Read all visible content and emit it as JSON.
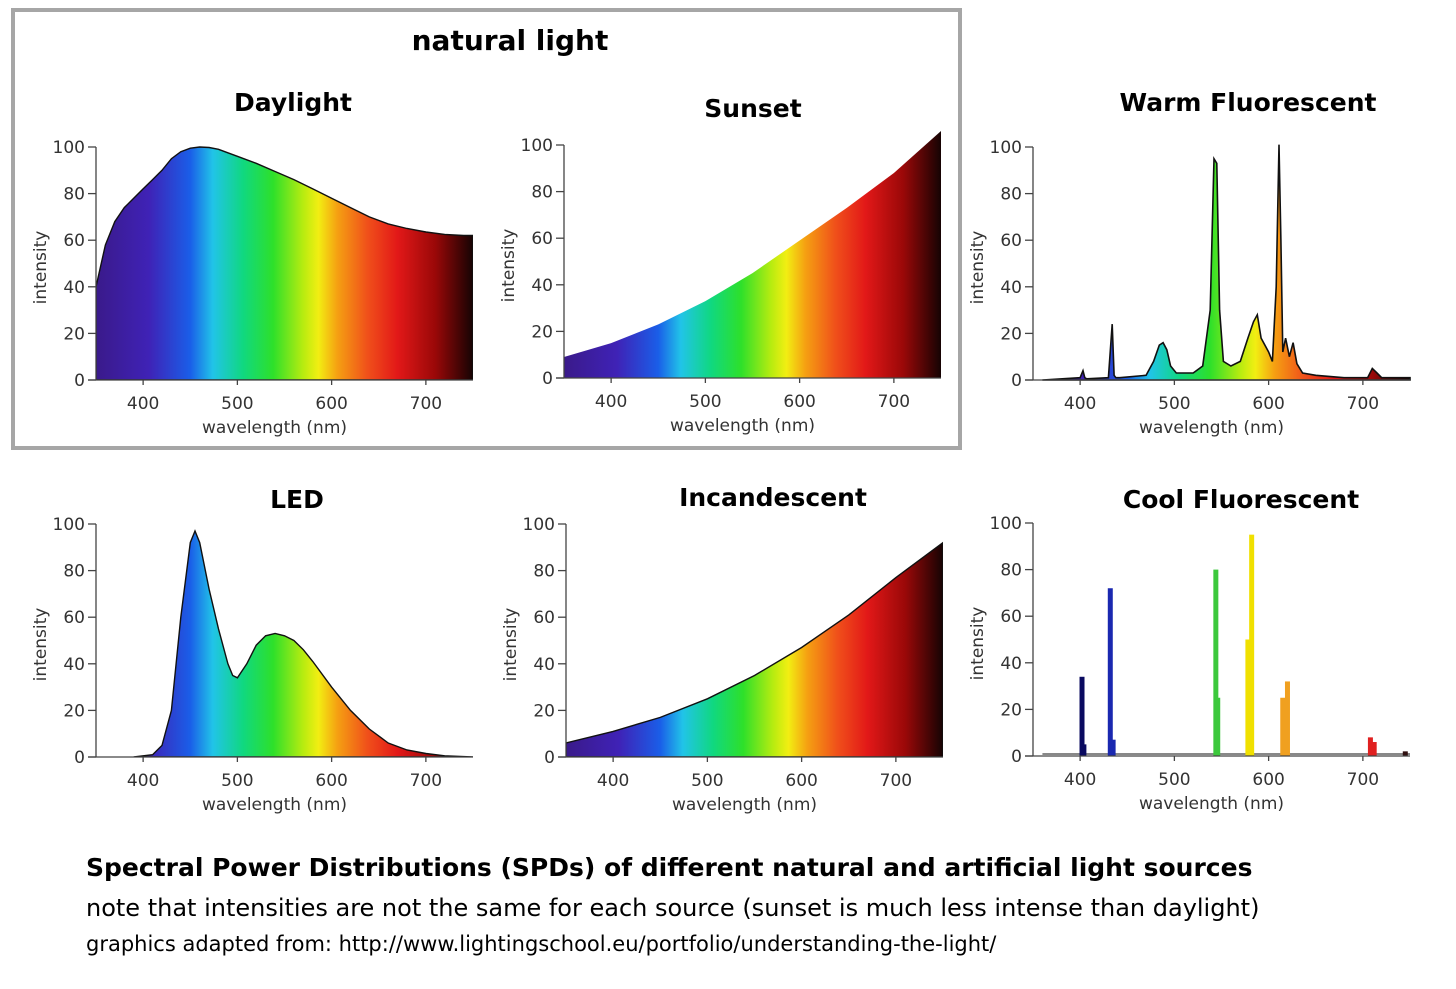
{
  "group_title": "natural light",
  "caption": {
    "title": "Spectral Power Distributions (SPDs) of different natural and artificial light sources",
    "note": "note that intensities are not the same for each source (sunset is much less intense than daylight)",
    "source": "graphics adapted from: http://www.lightingschool.eu/portfolio/understanding-the-light/"
  },
  "chart_data": [
    {
      "id": "daylight",
      "type": "area",
      "title": "Daylight",
      "xlabel": "wavelength (nm)",
      "ylabel": "intensity",
      "xlim": [
        350,
        750
      ],
      "ylim": [
        0,
        100
      ],
      "xticks": [
        400,
        500,
        600,
        700
      ],
      "yticks": [
        0,
        20,
        40,
        60,
        80,
        100
      ],
      "x": [
        350,
        360,
        370,
        380,
        390,
        400,
        410,
        420,
        430,
        440,
        450,
        460,
        470,
        480,
        490,
        500,
        520,
        540,
        560,
        580,
        600,
        620,
        640,
        660,
        680,
        700,
        720,
        740,
        750
      ],
      "y": [
        40,
        58,
        68,
        74,
        78,
        82,
        86,
        90,
        95,
        98,
        99.5,
        100,
        99.8,
        99,
        97.5,
        96,
        93,
        89.5,
        86,
        82,
        78,
        74,
        70,
        67,
        65,
        63.5,
        62.5,
        62,
        62
      ]
    },
    {
      "id": "sunset",
      "type": "area",
      "title": "Sunset",
      "xlabel": "wavelength (nm)",
      "ylabel": "intensity",
      "xlim": [
        350,
        750
      ],
      "ylim": [
        0,
        100
      ],
      "xticks": [
        400,
        500,
        600,
        700
      ],
      "yticks": [
        0,
        20,
        40,
        60,
        80,
        100
      ],
      "x": [
        350,
        400,
        450,
        500,
        550,
        600,
        650,
        700,
        750
      ],
      "y": [
        9,
        15,
        23,
        33,
        45,
        59,
        73,
        88,
        106
      ]
    },
    {
      "id": "warm-fluorescent",
      "type": "line",
      "title": "Warm Fluorescent",
      "xlabel": "wavelength (nm)",
      "ylabel": "intensity",
      "xlim": [
        350,
        750
      ],
      "ylim": [
        0,
        100
      ],
      "xticks": [
        400,
        500,
        600,
        700
      ],
      "yticks": [
        0,
        20,
        40,
        60,
        80,
        100
      ],
      "x": [
        360,
        400,
        403,
        405,
        407,
        430,
        434,
        436,
        438,
        442,
        470,
        478,
        484,
        488,
        492,
        496,
        502,
        520,
        530,
        538,
        542,
        545,
        548,
        552,
        560,
        570,
        578,
        584,
        588,
        592,
        596,
        600,
        604,
        608,
        611,
        613,
        615,
        618,
        622,
        626,
        630,
        636,
        650,
        680,
        705,
        710,
        715,
        720,
        740,
        750
      ],
      "y": [
        0,
        1,
        4,
        1,
        0.5,
        1,
        24,
        2,
        1,
        1,
        2,
        8,
        15,
        16,
        13,
        6,
        3,
        3,
        6,
        30,
        95,
        93,
        30,
        8,
        6,
        8,
        18,
        25,
        28,
        18,
        15,
        12,
        8,
        40,
        101,
        60,
        12,
        18,
        10,
        16,
        7,
        3,
        2,
        1,
        1,
        5,
        3,
        1,
        1,
        1
      ]
    },
    {
      "id": "led",
      "type": "area",
      "title": "LED",
      "xlabel": "wavelength (nm)",
      "ylabel": "intensity",
      "xlim": [
        350,
        750
      ],
      "ylim": [
        0,
        100
      ],
      "xticks": [
        400,
        500,
        600,
        700
      ],
      "yticks": [
        0,
        20,
        40,
        60,
        80,
        100
      ],
      "x": [
        390,
        410,
        420,
        430,
        440,
        450,
        455,
        460,
        470,
        480,
        490,
        495,
        500,
        510,
        520,
        530,
        540,
        550,
        560,
        570,
        580,
        600,
        620,
        640,
        660,
        680,
        700,
        720,
        750
      ],
      "y": [
        0,
        1,
        5,
        20,
        60,
        92,
        97,
        92,
        72,
        55,
        40,
        35,
        34,
        40,
        48,
        52,
        53,
        52,
        50,
        46,
        41,
        30,
        20,
        12,
        6,
        3,
        1.5,
        0.5,
        0
      ]
    },
    {
      "id": "incandescent",
      "type": "area",
      "title": "Incandescent",
      "xlabel": "wavelength (nm)",
      "ylabel": "intensity",
      "xlim": [
        350,
        750
      ],
      "ylim": [
        0,
        100
      ],
      "xticks": [
        400,
        500,
        600,
        700
      ],
      "yticks": [
        0,
        20,
        40,
        60,
        80,
        100
      ],
      "x": [
        350,
        400,
        450,
        500,
        550,
        600,
        650,
        700,
        750
      ],
      "y": [
        6,
        11,
        17,
        25,
        35,
        47,
        61,
        77,
        92
      ]
    },
    {
      "id": "cool-fluorescent",
      "type": "bar",
      "title": "Cool Fluorescent",
      "xlabel": "wavelength (nm)",
      "ylabel": "intensity",
      "xlim": [
        350,
        750
      ],
      "ylim": [
        0,
        100
      ],
      "xticks": [
        400,
        500,
        600,
        700
      ],
      "yticks": [
        0,
        20,
        40,
        60,
        80,
        100
      ],
      "x": [
        402,
        404,
        432,
        435,
        544,
        546,
        578,
        582,
        615,
        620,
        708,
        712,
        745
      ],
      "y": [
        34,
        5,
        72,
        7,
        80,
        25,
        50,
        95,
        25,
        32,
        8,
        6,
        2
      ],
      "colors": [
        "#0a0a60",
        "#0a0a60",
        "#1a28b0",
        "#1a28b0",
        "#3cc83c",
        "#3cc83c",
        "#f0e000",
        "#f0e000",
        "#f0a020",
        "#f0a020",
        "#e02020",
        "#e02020",
        "#301010"
      ]
    }
  ]
}
